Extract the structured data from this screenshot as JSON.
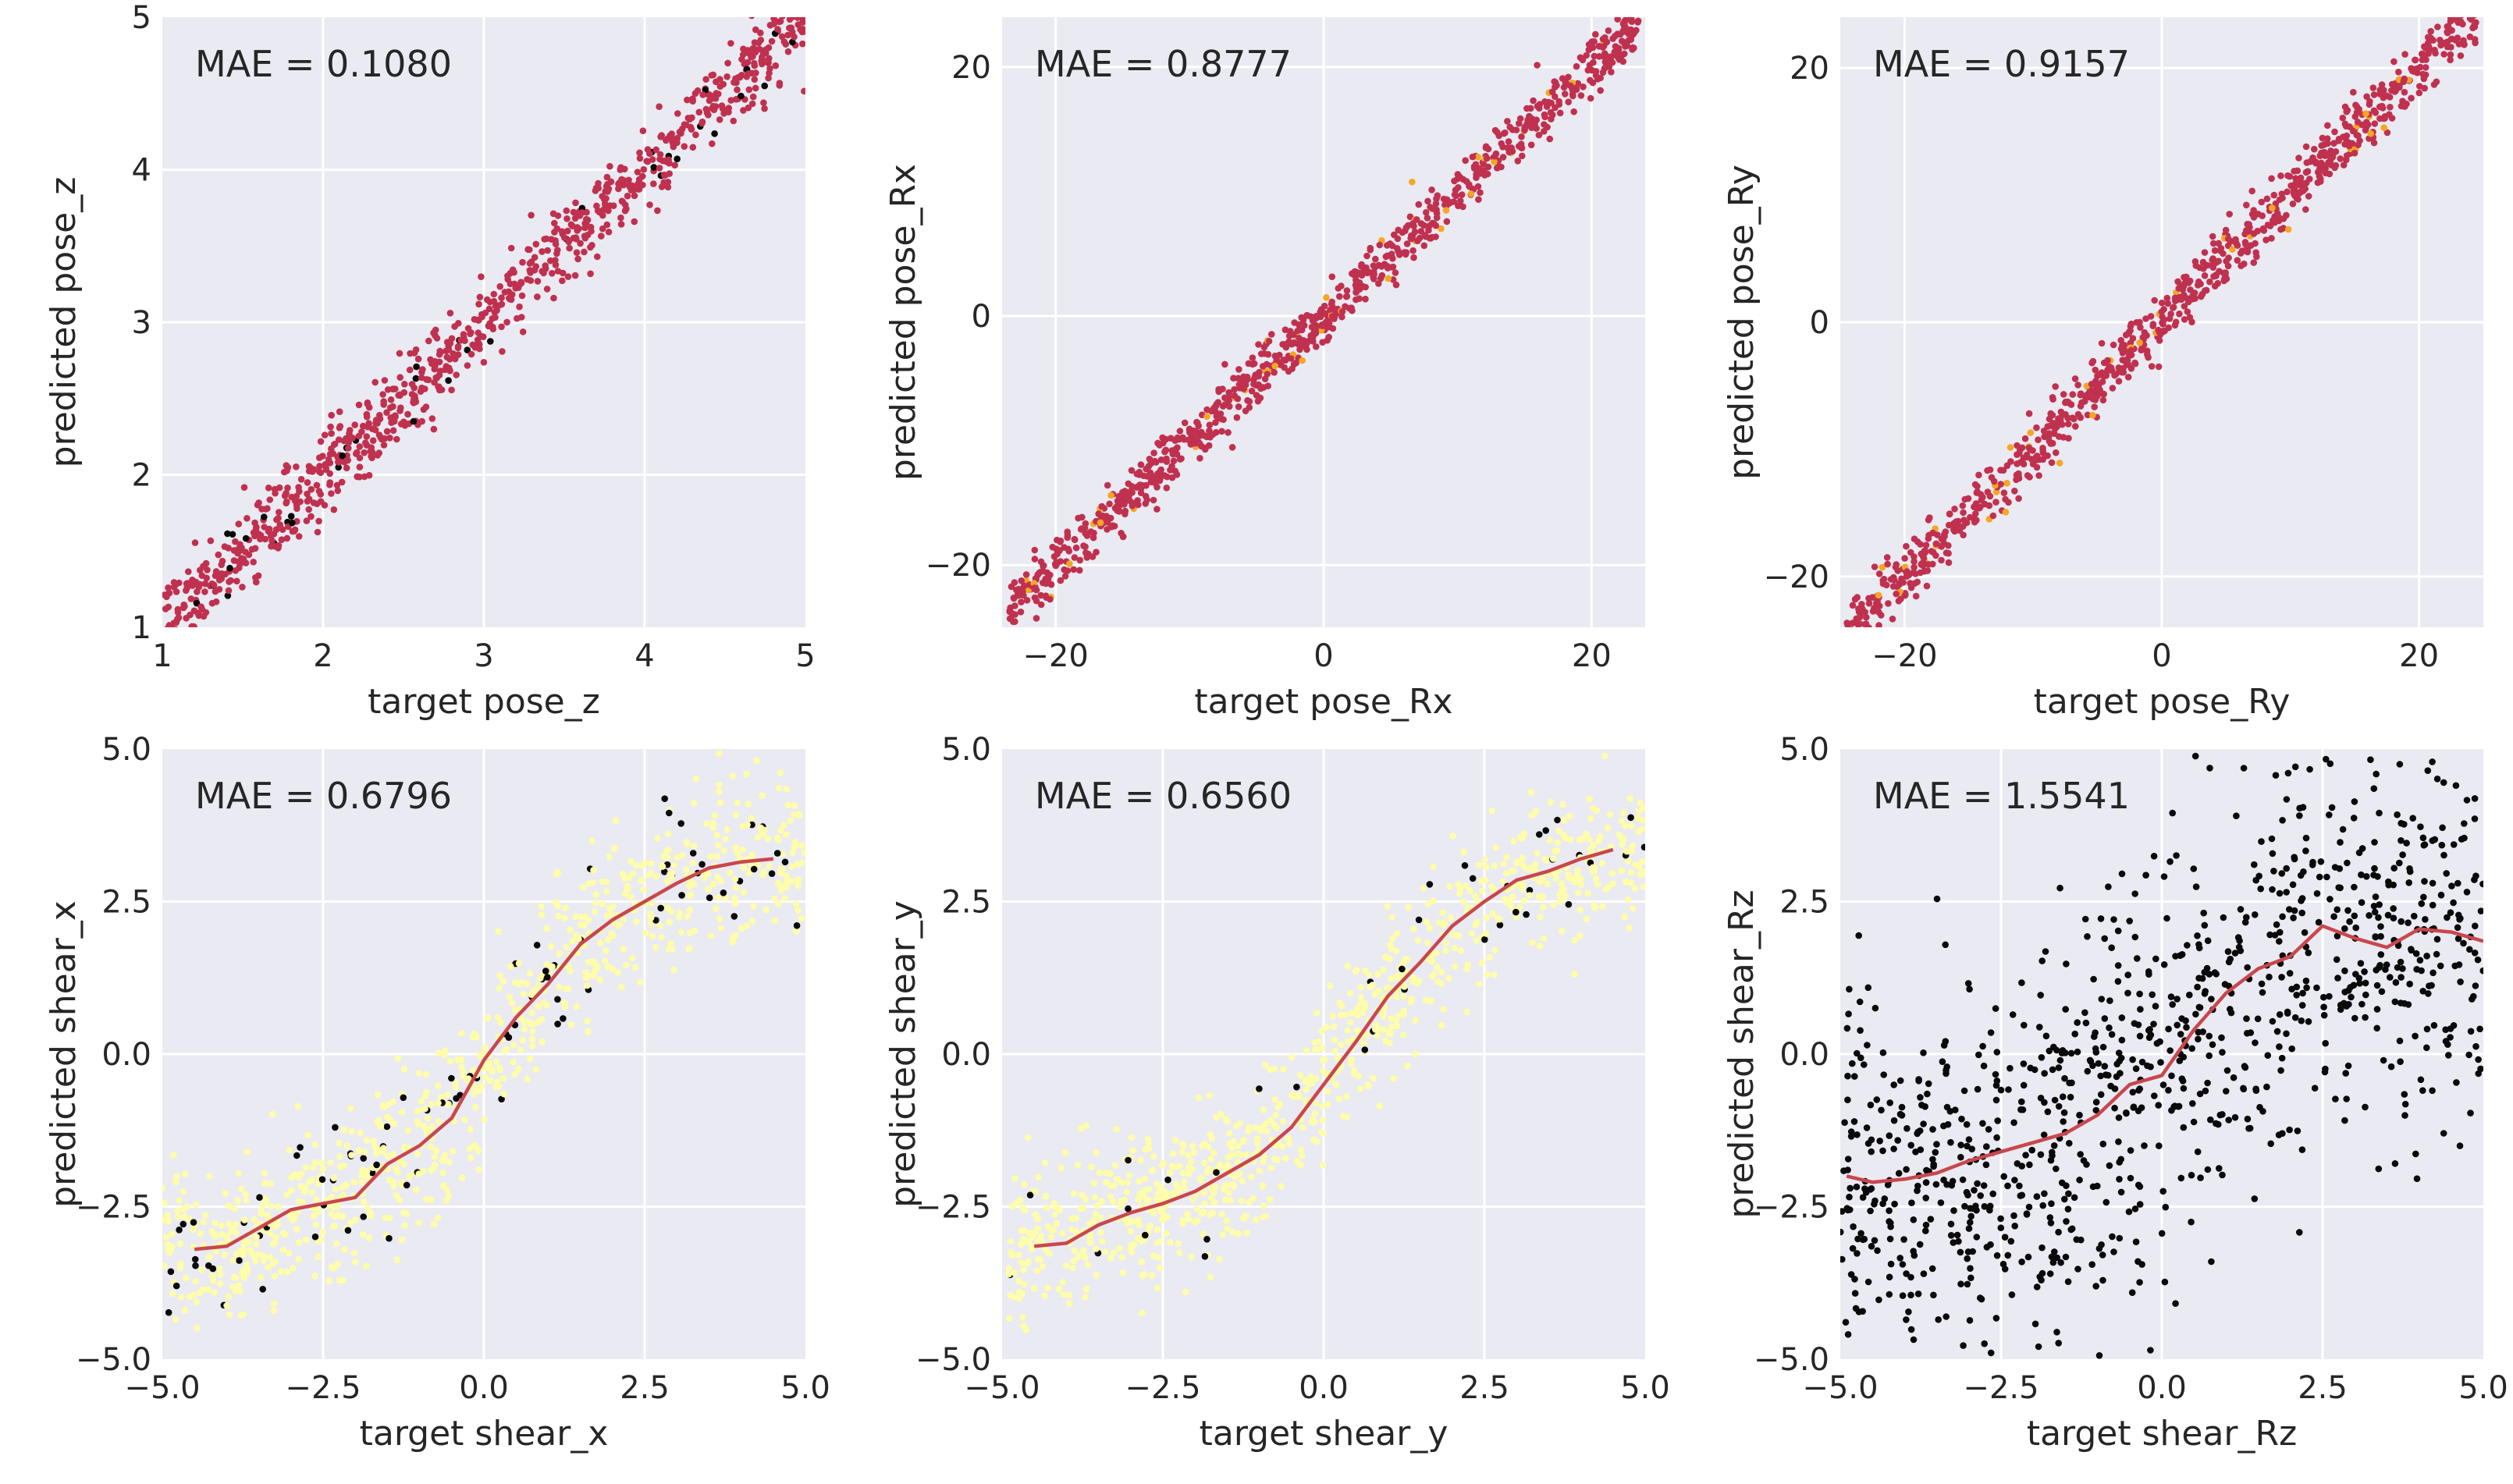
{
  "colors": {
    "plot_background": "#eaeaf2",
    "grid": "#ffffff",
    "crimson_points": "#c0314f",
    "yellow_points": "#fdfdab",
    "black_points": "#0a0a0a",
    "orange_points": "#f6a623",
    "trend_line": "#c8474d"
  },
  "chart_data": [
    {
      "type": "scatter",
      "xlabel": "target pose_z",
      "ylabel": "predicted pose_z",
      "annotation": "MAE = 0.1080",
      "xlim": [
        1,
        5
      ],
      "ylim": [
        1,
        5
      ],
      "xticks": [
        1,
        2,
        3,
        4,
        5
      ],
      "yticks": [
        1,
        2,
        3,
        4,
        5
      ],
      "tick_labels_x": [
        "1",
        "2",
        "3",
        "4",
        "5"
      ],
      "tick_labels_y": [
        "1",
        "2",
        "3",
        "4",
        "5"
      ],
      "grid": true,
      "points": {
        "count": 900,
        "x_range": [
          1.0,
          5.0
        ],
        "trend": "y = x",
        "noise_sd": 0.13,
        "main_color": "crimson",
        "accent_fraction": 0.04,
        "accent_color": "black"
      },
      "trend_line": null
    },
    {
      "type": "scatter",
      "xlabel": "target pose_Rx",
      "ylabel": "predicted pose_Rx",
      "annotation": "MAE = 0.8777",
      "xlim": [
        -24,
        24
      ],
      "ylim": [
        -25,
        24
      ],
      "xticks": [
        -20,
        0,
        20
      ],
      "yticks": [
        -20,
        0,
        20
      ],
      "tick_labels_x": [
        "−20",
        "0",
        "20"
      ],
      "tick_labels_y": [
        "−20",
        "0",
        "20"
      ],
      "grid": true,
      "points": {
        "count": 900,
        "x_range": [
          -23.5,
          23.5
        ],
        "trend": "y = x",
        "noise_sd": 1.1,
        "main_color": "crimson",
        "accent_fraction": 0.04,
        "accent_color": "orange"
      },
      "trend_line": null
    },
    {
      "type": "scatter",
      "xlabel": "target pose_Ry",
      "ylabel": "predicted pose_Ry",
      "annotation": "MAE = 0.9157",
      "xlim": [
        -25,
        25
      ],
      "ylim": [
        -24,
        24
      ],
      "xticks": [
        -20,
        0,
        20
      ],
      "yticks": [
        -20,
        0,
        20
      ],
      "tick_labels_x": [
        "−20",
        "0",
        "20"
      ],
      "tick_labels_y": [
        "−20",
        "0",
        "20"
      ],
      "grid": true,
      "points": {
        "count": 900,
        "x_range": [
          -24.5,
          24.5
        ],
        "trend": "y = x",
        "noise_sd": 1.15,
        "main_color": "crimson",
        "accent_fraction": 0.04,
        "accent_color": "orange"
      },
      "trend_line": null
    },
    {
      "type": "scatter",
      "xlabel": "target shear_x",
      "ylabel": "predicted shear_x",
      "annotation": "MAE = 0.6796",
      "xlim": [
        -5,
        5
      ],
      "ylim": [
        -5,
        5
      ],
      "xticks": [
        -5,
        -2.5,
        0,
        2.5,
        5
      ],
      "yticks": [
        -5,
        -2.5,
        0,
        2.5,
        5
      ],
      "tick_labels_x": [
        "−5.0",
        "−2.5",
        "0.0",
        "2.5",
        "5.0"
      ],
      "tick_labels_y": [
        "−5.0",
        "−2.5",
        "0.0",
        "2.5",
        "5.0"
      ],
      "grid": true,
      "points": {
        "count": 900,
        "x_range": [
          -5.0,
          5.0
        ],
        "trend": "follows trend line",
        "noise_sd": 0.65,
        "main_color": "yellow",
        "accent_fraction": 0.08,
        "accent_color": "black"
      },
      "trend_line": {
        "x": [
          -4.5,
          -4.0,
          -3.5,
          -3.0,
          -2.5,
          -2.0,
          -1.5,
          -1.0,
          -0.5,
          0.0,
          0.5,
          1.0,
          1.5,
          2.0,
          2.5,
          3.0,
          3.5,
          4.0,
          4.5
        ],
        "y": [
          -3.2,
          -3.15,
          -2.85,
          -2.55,
          -2.45,
          -2.35,
          -1.8,
          -1.5,
          -1.05,
          -0.1,
          0.6,
          1.15,
          1.8,
          2.2,
          2.5,
          2.8,
          3.05,
          3.15,
          3.2
        ]
      }
    },
    {
      "type": "scatter",
      "xlabel": "target shear_y",
      "ylabel": "predicted shear_y",
      "annotation": "MAE = 0.6560",
      "xlim": [
        -5,
        5
      ],
      "ylim": [
        -5,
        5
      ],
      "xticks": [
        -5,
        -2.5,
        0,
        2.5,
        5
      ],
      "yticks": [
        -5,
        -2.5,
        0,
        2.5,
        5
      ],
      "tick_labels_x": [
        "−5.0",
        "−2.5",
        "0.0",
        "2.5",
        "5.0"
      ],
      "tick_labels_y": [
        "−5.0",
        "−2.5",
        "0.0",
        "2.5",
        "5.0"
      ],
      "grid": true,
      "points": {
        "count": 900,
        "x_range": [
          -4.9,
          5.0
        ],
        "trend": "follows trend line",
        "noise_sd": 0.6,
        "main_color": "yellow",
        "accent_fraction": 0.04,
        "accent_color": "black"
      },
      "trend_line": {
        "x": [
          -4.5,
          -4.0,
          -3.5,
          -3.0,
          -2.5,
          -2.0,
          -1.5,
          -1.0,
          -0.5,
          0.0,
          0.5,
          1.0,
          1.5,
          2.0,
          2.5,
          3.0,
          3.5,
          4.0,
          4.5
        ],
        "y": [
          -3.15,
          -3.1,
          -2.8,
          -2.6,
          -2.45,
          -2.25,
          -1.95,
          -1.65,
          -1.2,
          -0.5,
          0.2,
          0.95,
          1.5,
          2.1,
          2.5,
          2.85,
          3.0,
          3.2,
          3.35
        ]
      }
    },
    {
      "type": "scatter",
      "xlabel": "target shear_Rz",
      "ylabel": "predicted shear_Rz",
      "annotation": "MAE = 1.5541",
      "xlim": [
        -5,
        5
      ],
      "ylim": [
        -5,
        5
      ],
      "xticks": [
        -5,
        -2.5,
        0,
        2.5,
        5
      ],
      "yticks": [
        -5,
        -2.5,
        0,
        2.5,
        5
      ],
      "tick_labels_x": [
        "−5.0",
        "−2.5",
        "0.0",
        "2.5",
        "5.0"
      ],
      "tick_labels_y": [
        "−5.0",
        "−2.5",
        "0.0",
        "2.5",
        "5.0"
      ],
      "grid": true,
      "points": {
        "count": 1000,
        "x_range": [
          -5.0,
          5.0
        ],
        "trend": "follows trend line",
        "noise_sd": 1.6,
        "main_color": "black",
        "accent_fraction": 0.0,
        "accent_color": "black"
      },
      "trend_line": {
        "x": [
          -4.9,
          -4.5,
          -4.0,
          -3.5,
          -3.0,
          -2.5,
          -2.0,
          -1.5,
          -1.0,
          -0.5,
          0.0,
          0.5,
          1.0,
          1.5,
          2.0,
          2.5,
          3.0,
          3.5,
          4.0,
          4.5,
          5.0
        ],
        "y": [
          -2.0,
          -2.1,
          -2.05,
          -1.95,
          -1.75,
          -1.6,
          -1.45,
          -1.3,
          -1.0,
          -0.5,
          -0.35,
          0.4,
          1.0,
          1.4,
          1.6,
          2.1,
          1.9,
          1.75,
          2.05,
          2.0,
          1.85
        ]
      }
    }
  ]
}
